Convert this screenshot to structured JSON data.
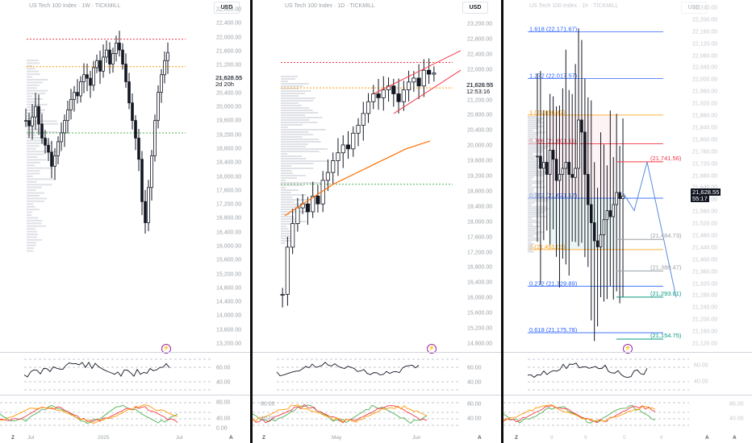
{
  "panels": [
    {
      "title": "US Tech 100 Index · 1W · TICKMILL",
      "currency": "USD",
      "price_axis": [
        "22,800.00",
        "22,400.00",
        "22,000.00",
        "21,600.00",
        "21,200.00",
        "20,800.00",
        "20,400.00",
        "20,000.00",
        "19,600.00",
        "19,200.00",
        "18,800.00",
        "18,400.00",
        "18,000.00",
        "17,600.00",
        "17,200.00",
        "16,800.00",
        "16,400.00",
        "16,000.00",
        "15,600.00",
        "15,200.00",
        "14,800.00",
        "14,400.00",
        "14,000.00",
        "13,600.00",
        "13,200.00"
      ],
      "last_price": "21,628.55",
      "countdown": "2d 20h",
      "rsi_axis": [
        "60.00",
        "40.00"
      ],
      "stoch_axis": [
        "80.00",
        "40.00",
        "0.00"
      ],
      "time_axis": [
        "Jul",
        "2025",
        "Jul"
      ],
      "corner": "Z",
      "corner_right": "A"
    },
    {
      "title": "US Tech 100 Index · 1D · TICKMILL",
      "currency": "USD",
      "price_axis": [
        "23,200.00",
        "22,800.00",
        "22,400.00",
        "22,000.00",
        "21,600.00",
        "21,200.00",
        "20,800.00",
        "20,400.00",
        "20,000.00",
        "19,600.00",
        "19,200.00",
        "18,800.00",
        "18,400.00",
        "18,000.00",
        "17,600.00",
        "17,200.00",
        "16,800.00",
        "16,400.00",
        "16,000.00",
        "15,600.00",
        "15,200.00",
        "14,800.00"
      ],
      "last_price": "21,628.55",
      "countdown": "12:53:16",
      "rsi_axis": [
        "60.00",
        "40.00"
      ],
      "stoch_axis": [
        "80.00",
        "40.00"
      ],
      "time_axis": [
        "May",
        "Jun"
      ],
      "corner": "Z",
      "corner_right": "A"
    },
    {
      "title": "US Tech 100 Index · 1h · TICKMILL",
      "currency": "USD",
      "price_axis": [
        "22,240.00",
        "22,200.00",
        "22,160.00",
        "22,120.00",
        "22,080.00",
        "22,040.00",
        "22,000.00",
        "21,960.00",
        "21,920.00",
        "21,880.00",
        "21,840.00",
        "21,800.00",
        "21,760.00",
        "21,720.00",
        "21,680.00",
        "21,640.00",
        "21,600.00",
        "21,560.00",
        "21,520.00",
        "21,480.00",
        "21,440.00",
        "21,400.00",
        "21,360.00",
        "21,320.00",
        "21,280.00",
        "21,240.00",
        "21,200.00",
        "21,160.00",
        "21,120.00"
      ],
      "last_price": "21,628.55",
      "countdown": "55:17",
      "fib_levels": [
        {
          "label": "1.618 (22,171.67)",
          "color": "#2962ff"
        },
        {
          "label": "1.272 (22,017.57)",
          "color": "#2962ff"
        },
        {
          "label": "1 (21,896.42)",
          "color": "#ff9800"
        },
        {
          "label": "0.786 (21,801.11)",
          "color": "#f23645"
        },
        {
          "label": "0.382 (21,621.17)",
          "color": "#2962ff"
        },
        {
          "label": "0 (21,451.03)",
          "color": "#ff9800"
        },
        {
          "label": "0.272 (21,329.89)",
          "color": "#2962ff"
        },
        {
          "label": "0.618 (21,175.78)",
          "color": "#2962ff"
        }
      ],
      "targets": [
        {
          "label": "(21,741.56)",
          "color": "#f23645"
        },
        {
          "label": "(21,484.73)",
          "color": "#9aa0a6"
        },
        {
          "label": "(21,380.47)",
          "color": "#9aa0a6"
        },
        {
          "label": "(21,293.61)",
          "color": "#089981"
        },
        {
          "label": "(21,154.75)",
          "color": "#089981"
        }
      ],
      "rsi_axis": [
        "60.00",
        "40.00"
      ],
      "stoch_axis": [
        "80.00",
        "40.00"
      ],
      "time_axis": [
        "8",
        "9",
        "5",
        "6"
      ],
      "corner": "Z",
      "corner_right": "A"
    }
  ],
  "colors": {
    "up": "#131722",
    "down": "#131722",
    "red_dash": "#f23645",
    "orange_dash": "#ff9800",
    "green_dash": "#4caf50",
    "blue": "#2962ff",
    "ma": "#ff6d00"
  },
  "chart_data": [
    {
      "type": "candlestick",
      "title": "US Tech 100 Index · 1W · TICKMILL",
      "ylim": [
        13200,
        22800
      ],
      "levels": [
        {
          "price": 22010,
          "color": "red"
        },
        {
          "price": 21230,
          "color": "orange"
        },
        {
          "price": 19350,
          "color": "green"
        }
      ],
      "last": 21628.55,
      "close_path": [
        19700,
        19550,
        19800,
        20100,
        19600,
        19200,
        19000,
        18800,
        18400,
        18700,
        19100,
        19350,
        19700,
        20000,
        20300,
        20500,
        20400,
        20800,
        21000,
        20900,
        20700,
        21200,
        21400,
        21100,
        21500,
        21700,
        21300,
        21600,
        21900,
        21700,
        21300,
        20800,
        20200,
        19700,
        19200,
        18600,
        17400,
        16800,
        17800,
        18700,
        19700,
        20500,
        21000,
        21400,
        21628
      ]
    },
    {
      "type": "candlestick",
      "title": "US Tech 100 Index · 1D · TICKMILL",
      "ylim": [
        14800,
        23200
      ],
      "levels": [
        {
          "price": 21900,
          "color": "red"
        },
        {
          "price": 21250,
          "color": "orange"
        },
        {
          "price": 18800,
          "color": "green"
        }
      ],
      "last": 21628.55,
      "close_path": [
        16000,
        17200,
        17800,
        18200,
        18300,
        18100,
        18500,
        18300,
        18900,
        19100,
        19400,
        19600,
        19800,
        19700,
        20100,
        20300,
        20600,
        20900,
        21100,
        21000,
        21200,
        21300,
        21100,
        20900,
        21200,
        21400,
        21500,
        21300,
        21700,
        21600,
        21628
      ],
      "ma_path": [
        18000,
        18200,
        18400,
        18600,
        18800,
        18950,
        19100,
        19250,
        19400,
        19550,
        19700,
        19800,
        19900
      ]
    },
    {
      "type": "candlestick",
      "title": "US Tech 100 Index · 1h · TICKMILL",
      "ylim": [
        21120,
        22240
      ],
      "last": 21628.55,
      "close_path": [
        21760,
        21720,
        21740,
        21700,
        21780,
        21750,
        21680,
        21700,
        21720,
        21740,
        21700,
        21690,
        21720,
        21880,
        21840,
        21700,
        21600,
        21540,
        21480,
        21460,
        21500,
        21550,
        21580,
        21560,
        21600,
        21640,
        21620,
        21628
      ]
    }
  ]
}
